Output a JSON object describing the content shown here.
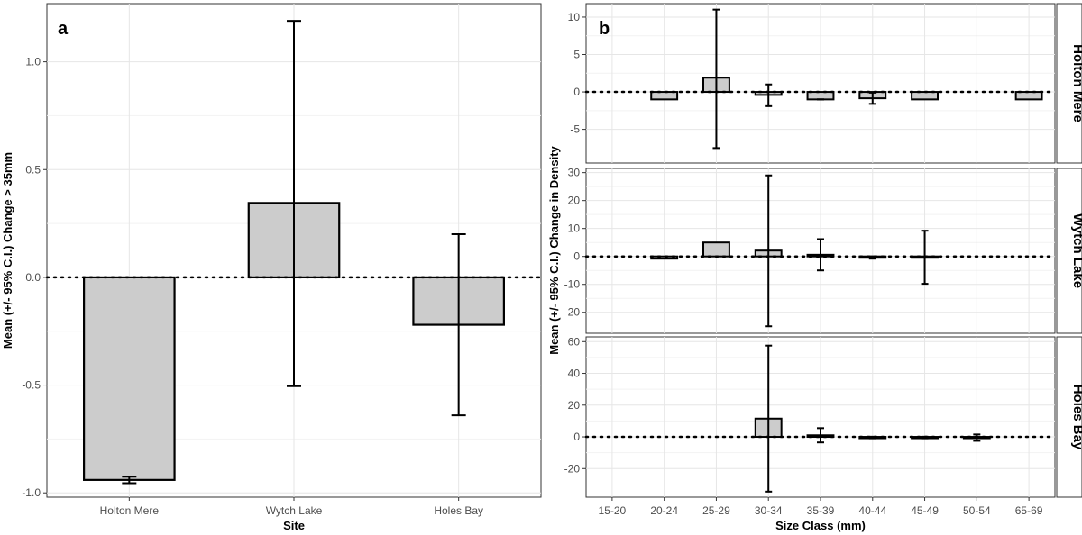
{
  "chart_data": [
    {
      "panel_label": "a",
      "type": "bar",
      "xlabel": "Site",
      "ylabel": "Mean (+/- 95% C.I.) Change > 35mm",
      "categories": [
        "Holton Mere",
        "Wytch Lake",
        "Holes Bay"
      ],
      "values": [
        -0.94,
        0.345,
        -0.22
      ],
      "error_low": [
        -0.955,
        -0.505,
        -0.64
      ],
      "error_high": [
        -0.925,
        1.19,
        0.2
      ],
      "ylim": [
        -1.02,
        1.27
      ],
      "yticks": [
        -1.0,
        -0.5,
        0.0,
        0.5,
        1.0
      ],
      "ytick_labels": [
        "-1.0",
        "-0.5",
        "0.0",
        "0.5",
        "1.0"
      ],
      "reference_line": 0,
      "grid": true,
      "bar_color": "#cccccc"
    },
    {
      "panel_label": "b",
      "type": "bar",
      "xlabel": "Size Class (mm)",
      "ylabel": "Mean (+/- 95% C.I.) Change in Density",
      "categories": [
        "15-20",
        "20-24",
        "25-29",
        "30-34",
        "35-39",
        "40-44",
        "45-49",
        "50-54",
        "65-69"
      ],
      "grid": true,
      "bar_color": "#cccccc",
      "facets": [
        {
          "name": "Holton Mere",
          "ylim": [
            -9.5,
            11.8
          ],
          "yticks": [
            -5,
            0,
            5,
            10
          ],
          "ytick_labels": [
            "-5",
            "0",
            "5",
            "10"
          ],
          "bars": [
            {
              "category": "20-24",
              "value": -1.0
            },
            {
              "category": "25-29",
              "value": 1.9,
              "error_low": -7.5,
              "error_high": 11.0
            },
            {
              "category": "30-34",
              "value": -0.4,
              "error_low": -1.9,
              "error_high": 1.0
            },
            {
              "category": "35-39",
              "value": -1.0,
              "error_low": -1.0,
              "error_high": -1.0
            },
            {
              "category": "40-44",
              "value": -0.85,
              "error_low": -1.6,
              "error_high": -0.1
            },
            {
              "category": "45-49",
              "value": -1.0
            },
            {
              "category": "65-69",
              "value": -1.0
            }
          ]
        },
        {
          "name": "Wytch Lake",
          "ylim": [
            -27.5,
            31.5
          ],
          "yticks": [
            -20,
            -10,
            0,
            10,
            20,
            30
          ],
          "ytick_labels": [
            "-20",
            "-10",
            "0",
            "10",
            "20",
            "30"
          ],
          "bars": [
            {
              "category": "20-24",
              "value": -0.8
            },
            {
              "category": "25-29",
              "value": 5.0
            },
            {
              "category": "30-34",
              "value": 2.1,
              "error_low": -25.0,
              "error_high": 29.0
            },
            {
              "category": "35-39",
              "value": 0.6,
              "error_low": -5.0,
              "error_high": 6.2
            },
            {
              "category": "40-44",
              "value": -0.4,
              "error_low": -0.8,
              "error_high": 0.0
            },
            {
              "category": "45-49",
              "value": -0.3,
              "error_low": -9.8,
              "error_high": 9.2
            }
          ]
        },
        {
          "name": "Holes Bay",
          "ylim": [
            -38,
            63
          ],
          "yticks": [
            -20,
            0,
            20,
            40,
            60
          ],
          "ytick_labels": [
            "-20",
            "0",
            "20",
            "40",
            "60"
          ],
          "bars": [
            {
              "category": "30-34",
              "value": 11.5,
              "error_low": -34.5,
              "error_high": 57.5
            },
            {
              "category": "35-39",
              "value": 1.0,
              "error_low": -3.5,
              "error_high": 5.5
            },
            {
              "category": "40-44",
              "value": -0.4,
              "error_low": -0.9,
              "error_high": 0.1
            },
            {
              "category": "45-49",
              "value": -0.4,
              "error_low": -0.9,
              "error_high": 0.1
            },
            {
              "category": "50-54",
              "value": -0.5,
              "error_low": -2.5,
              "error_high": 1.5
            }
          ]
        }
      ]
    }
  ]
}
